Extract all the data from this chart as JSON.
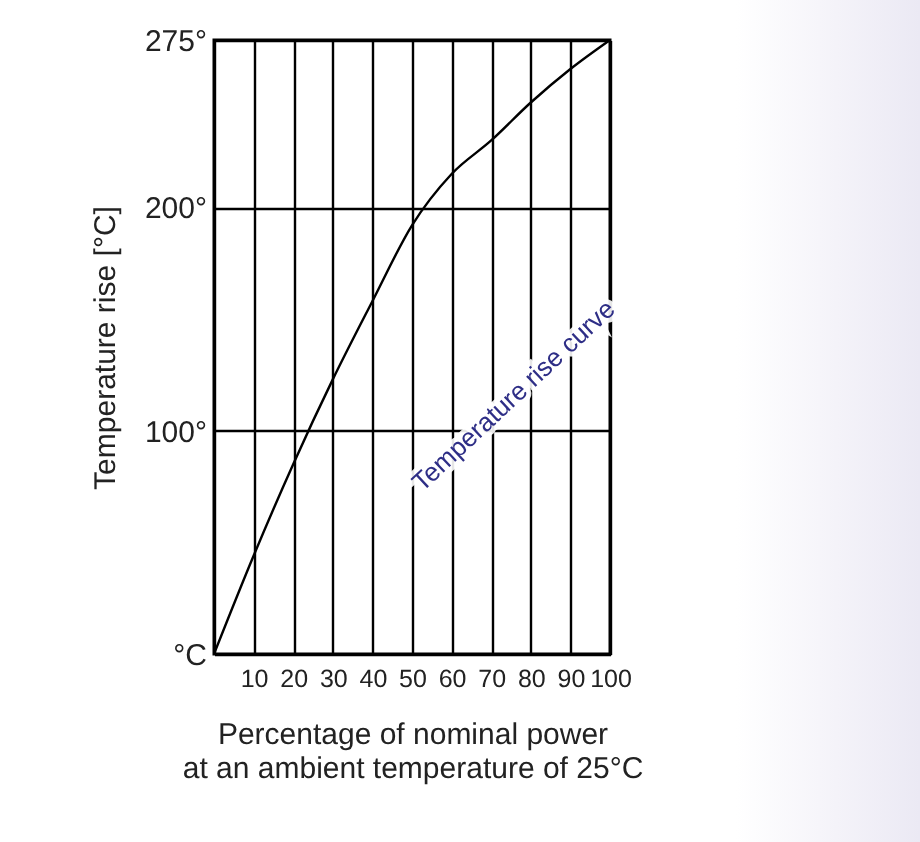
{
  "chart_data": {
    "type": "line",
    "xlabel": "Percentage of nominal power\nat an ambient temperature of 25°C",
    "ylabel": "Temperature rise [°C]",
    "x": [
      0,
      10,
      20,
      30,
      40,
      50,
      60,
      70,
      80,
      90,
      100
    ],
    "series": [
      {
        "color": "#000000",
        "values": [
          0,
          44,
          85,
          123,
          158,
          192,
          215,
          230,
          247,
          262,
          275
        ]
      }
    ],
    "xlim": [
      0,
      100
    ],
    "ylim": [
      0,
      275
    ],
    "xticks": [
      {
        "value": 0,
        "label": null
      },
      10,
      20,
      30,
      40,
      50,
      60,
      70,
      80,
      90,
      100
    ],
    "yticks": [
      {
        "value": 0,
        "label": "°C"
      },
      {
        "value": 100,
        "label": "100°"
      },
      {
        "value": 200,
        "label": "200°"
      },
      {
        "value": 275,
        "label": "275°"
      }
    ],
    "grid": true,
    "marker": "none",
    "line_style": "solid",
    "annotations": [
      "Temperature rise curve"
    ]
  }
}
